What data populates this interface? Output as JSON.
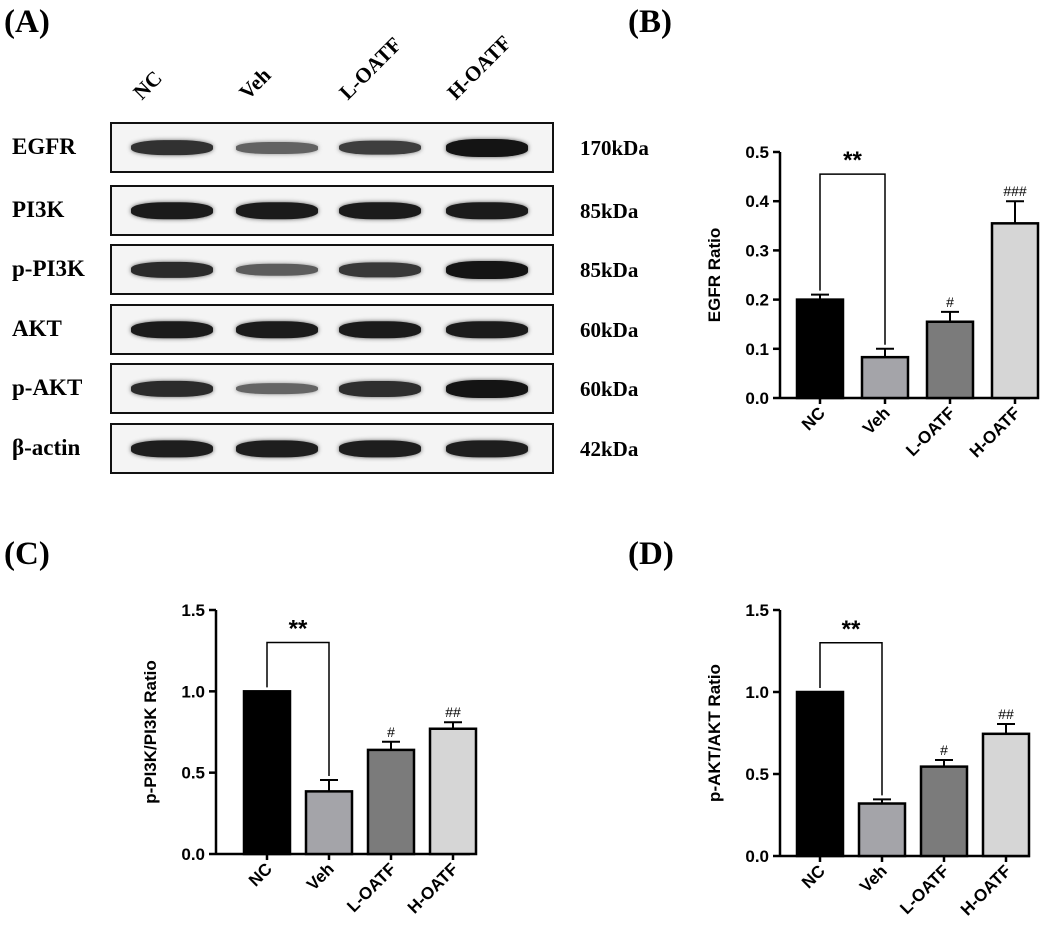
{
  "panels": {
    "A": "(A)",
    "B": "(B)",
    "C": "(C)",
    "D": "(D)"
  },
  "blot": {
    "lanes": [
      "NC",
      "Veh",
      "L-OATF",
      "H-OATF"
    ],
    "rows": [
      {
        "protein": "EGFR",
        "kda": "170kDa",
        "intensity": [
          0.78,
          0.4,
          0.68,
          1.0
        ]
      },
      {
        "protein": "PI3K",
        "kda": "85kDa",
        "intensity": [
          0.95,
          0.95,
          0.95,
          0.95
        ]
      },
      {
        "protein": "p-PI3K",
        "kda": "85kDa",
        "intensity": [
          0.82,
          0.45,
          0.72,
          1.0
        ]
      },
      {
        "protein": "AKT",
        "kda": "60kDa",
        "intensity": [
          0.95,
          0.95,
          0.95,
          0.95
        ]
      },
      {
        "protein": "p-AKT",
        "kda": "60kDa",
        "intensity": [
          0.82,
          0.38,
          0.8,
          1.0
        ]
      },
      {
        "protein": "β-actin",
        "kda": "42kDa",
        "intensity": [
          0.92,
          0.92,
          0.92,
          0.92
        ]
      }
    ]
  },
  "chart_data": [
    {
      "panel": "B",
      "type": "bar",
      "categories": [
        "NC",
        "Veh",
        "L-OATF",
        "H-OATF"
      ],
      "values": [
        0.2,
        0.083,
        0.155,
        0.355
      ],
      "errors": [
        0.01,
        0.017,
        0.02,
        0.045
      ],
      "colors": [
        "#000000",
        "#a4a4a9",
        "#7b7b7b",
        "#d6d6d6"
      ],
      "annotations": [
        "",
        "",
        "#",
        "###"
      ],
      "significance": {
        "from": 0,
        "to": 1,
        "label": "**",
        "y": 0.455
      },
      "ylabel": "EGFR Ratio",
      "xlabel": "",
      "ylim": [
        0,
        0.5
      ],
      "yticks": [
        "0.0",
        "0.1",
        "0.2",
        "0.3",
        "0.4",
        "0.5"
      ],
      "ytick_values": [
        0,
        0.1,
        0.2,
        0.3,
        0.4,
        0.5
      ]
    },
    {
      "panel": "C",
      "type": "bar",
      "categories": [
        "NC",
        "Veh",
        "L-OATF",
        "H-OATF"
      ],
      "values": [
        1.0,
        0.385,
        0.64,
        0.77
      ],
      "errors": [
        0,
        0.07,
        0.05,
        0.04
      ],
      "colors": [
        "#000000",
        "#a4a4a9",
        "#7b7b7b",
        "#d6d6d6"
      ],
      "annotations": [
        "",
        "",
        "#",
        "##"
      ],
      "significance": {
        "from": 0,
        "to": 1,
        "label": "**",
        "y": 1.3
      },
      "ylabel": "p-PI3K/PI3K Ratio",
      "xlabel": "",
      "ylim": [
        0,
        1.5
      ],
      "yticks": [
        "0.0",
        "0.5",
        "1.0",
        "1.5"
      ],
      "ytick_values": [
        0,
        0.5,
        1.0,
        1.5
      ]
    },
    {
      "panel": "D",
      "type": "bar",
      "categories": [
        "NC",
        "Veh",
        "L-OATF",
        "H-OATF"
      ],
      "values": [
        1.0,
        0.32,
        0.545,
        0.745
      ],
      "errors": [
        0,
        0.025,
        0.04,
        0.06
      ],
      "colors": [
        "#000000",
        "#a4a4a9",
        "#7b7b7b",
        "#d6d6d6"
      ],
      "annotations": [
        "",
        "",
        "#",
        "##"
      ],
      "significance": {
        "from": 0,
        "to": 1,
        "label": "**",
        "y": 1.3
      },
      "ylabel": "p-AKT/AKT Ratio",
      "xlabel": "",
      "ylim": [
        0,
        1.5
      ],
      "yticks": [
        "0.0",
        "0.5",
        "1.0",
        "1.5"
      ],
      "ytick_values": [
        0,
        0.5,
        1.0,
        1.5
      ]
    }
  ]
}
